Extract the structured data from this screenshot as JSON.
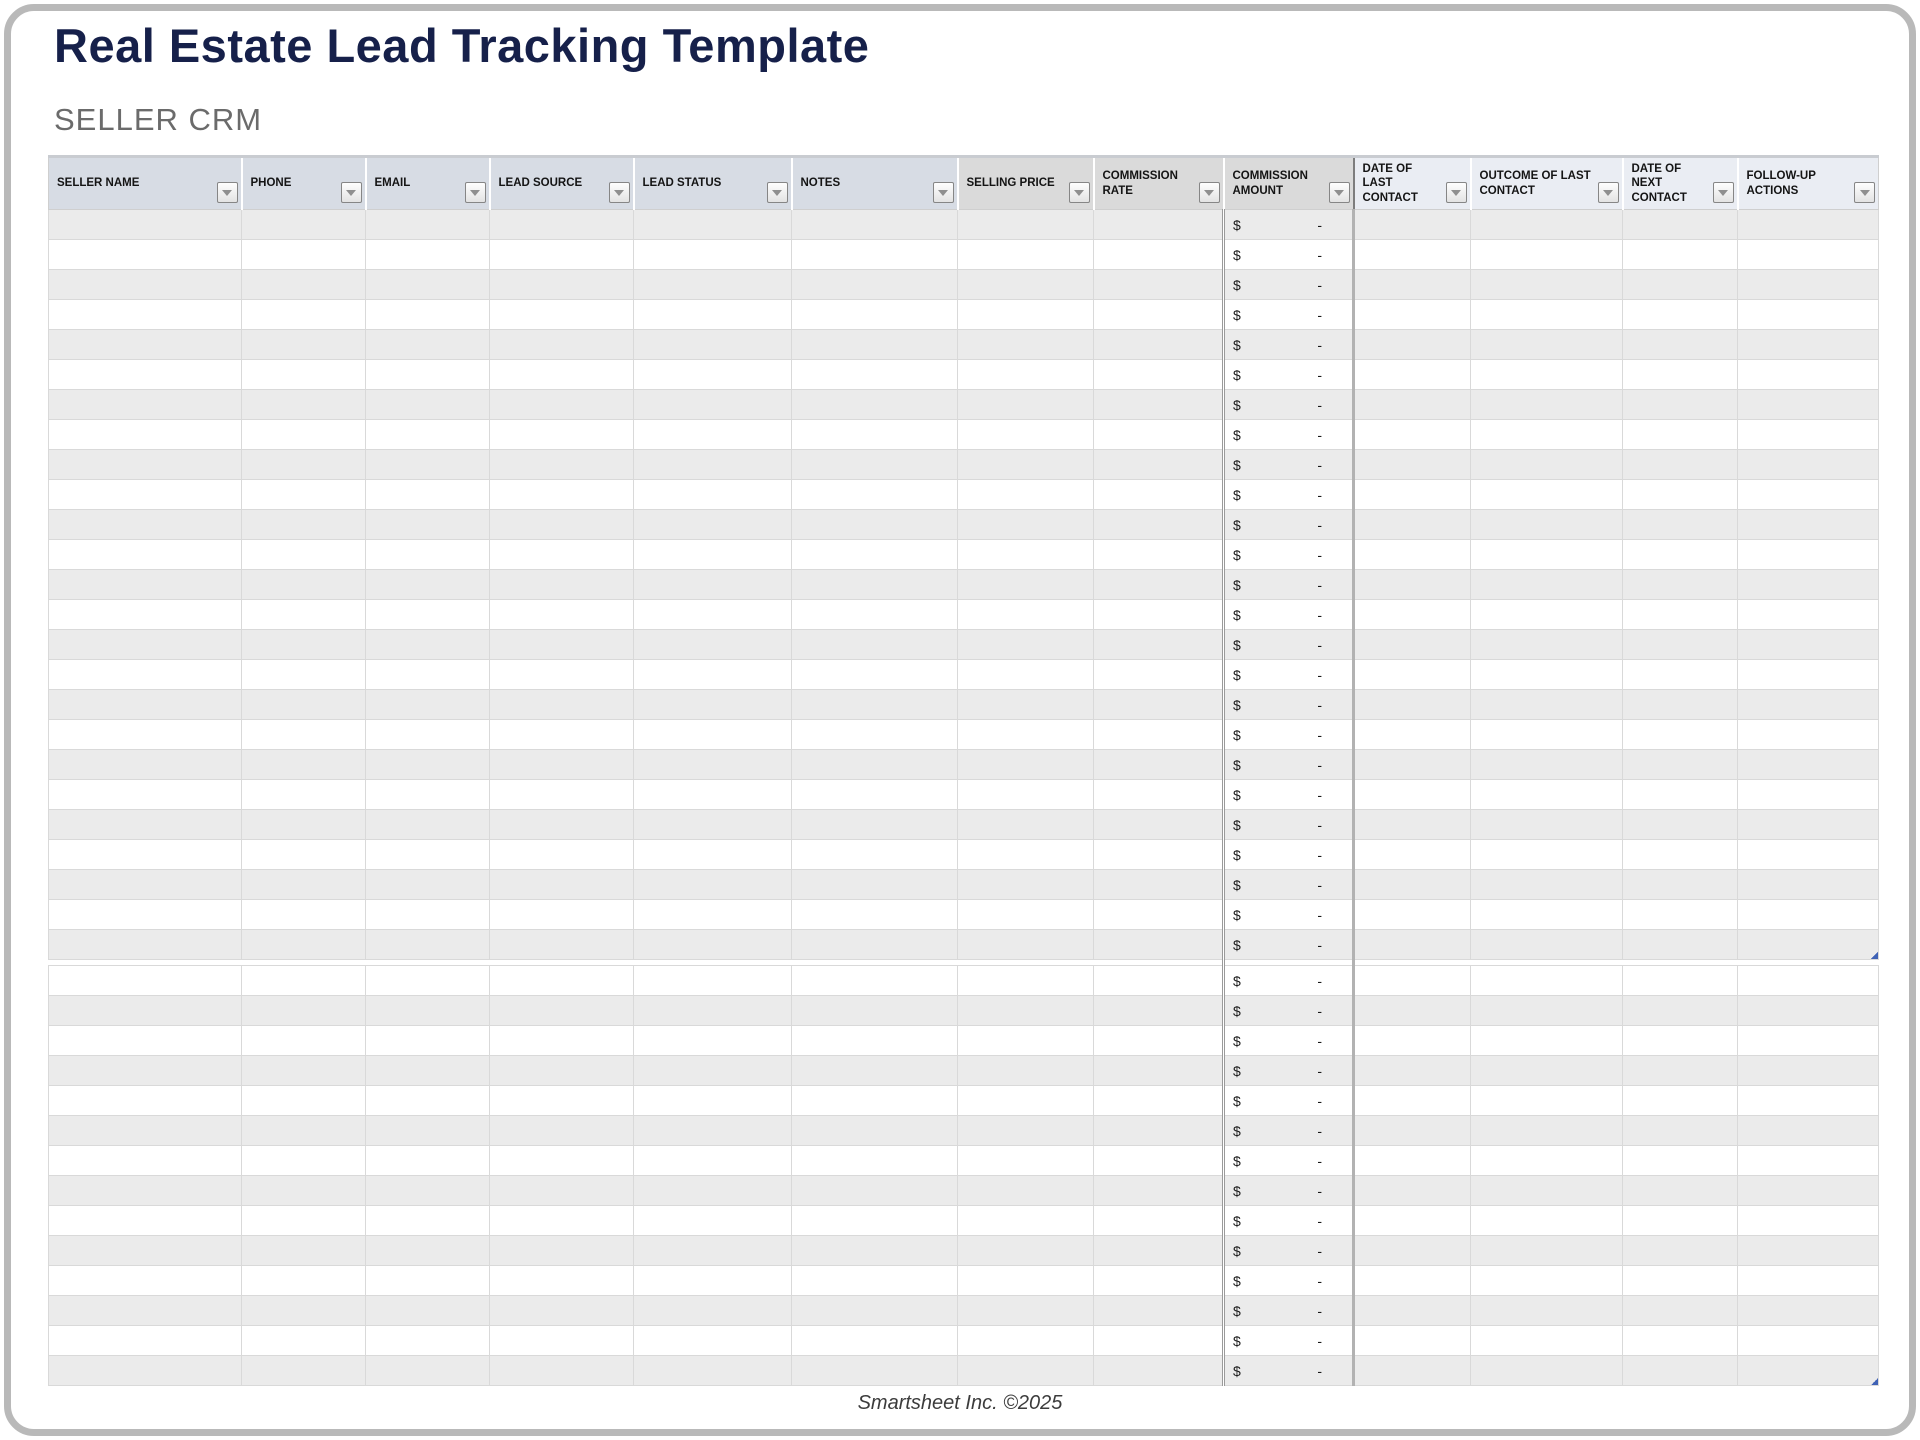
{
  "page": {
    "title": "Real Estate Lead Tracking Template",
    "subtitle": "SELLER CRM",
    "footer": "Smartsheet Inc. ©2025"
  },
  "table": {
    "columns": [
      {
        "id": "seller-name",
        "label": "SELLER NAME",
        "group": "blue"
      },
      {
        "id": "phone",
        "label": "PHONE",
        "group": "blue"
      },
      {
        "id": "email",
        "label": "EMAIL",
        "group": "blue"
      },
      {
        "id": "lead-source",
        "label": "LEAD SOURCE",
        "group": "blue"
      },
      {
        "id": "lead-status",
        "label": "LEAD STATUS",
        "group": "blue"
      },
      {
        "id": "notes",
        "label": "NOTES",
        "group": "blue"
      },
      {
        "id": "selling-price",
        "label": "SELLING PRICE",
        "group": "gray"
      },
      {
        "id": "commission-rate",
        "label": "COMMISSION RATE",
        "group": "gray"
      },
      {
        "id": "commission-amount",
        "label": "COMMISSION AMOUNT",
        "group": "gray"
      },
      {
        "id": "date-of-last-contact",
        "label": "DATE OF LAST CONTACT",
        "group": "lightblue"
      },
      {
        "id": "outcome-of-last-contact",
        "label": "OUTCOME OF LAST CONTACT",
        "group": "lightblue"
      },
      {
        "id": "date-of-next-contact",
        "label": "DATE OF NEXT CONTACT",
        "group": "lightblue"
      },
      {
        "id": "follow-up-actions",
        "label": "FOLLOW-UP ACTIONS",
        "group": "lightblue"
      }
    ],
    "filter_icon": "chevron-down-icon",
    "sections": [
      {
        "rows": 25,
        "first_row_shade": "gray"
      },
      {
        "rows": 14,
        "first_row_shade": "white"
      }
    ],
    "commission_cell": {
      "currency_symbol": "$",
      "value": "-"
    }
  },
  "colors": {
    "title_navy": "#16204a",
    "subtitle_gray": "#6b6b6b",
    "header_blue": "#d7dce4",
    "header_gray": "#dadada",
    "header_lightblue": "#eaedf3",
    "row_alt_gray": "#ebebeb",
    "table_handle_blue": "#3f62b5",
    "frame_gray": "#b9b9b9"
  }
}
